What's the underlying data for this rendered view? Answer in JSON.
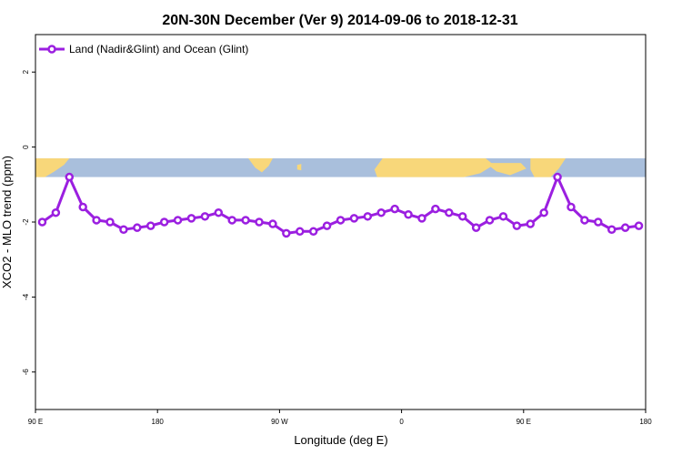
{
  "chart_data": {
    "type": "line",
    "title": "20N-30N December (Ver 9)   2014-09-06 to 2018-12-31",
    "xlabel": "Longitude (deg E)",
    "ylabel": "XCO2 - MLO trend (ppm)",
    "xlim": [
      90,
      540
    ],
    "ylim": [
      -7,
      3
    ],
    "x_ticks": [
      {
        "value": 90,
        "label": "90 E"
      },
      {
        "value": 180,
        "label": "180"
      },
      {
        "value": 270,
        "label": "90 W"
      },
      {
        "value": 360,
        "label": "0"
      },
      {
        "value": 450,
        "label": "90 E"
      },
      {
        "value": 540,
        "label": "180"
      }
    ],
    "y_ticks": [
      {
        "value": 2,
        "label": "2"
      },
      {
        "value": 0,
        "label": "0"
      },
      {
        "value": -2,
        "label": "-2"
      },
      {
        "value": -4,
        "label": "-4"
      },
      {
        "value": -6,
        "label": "-6"
      }
    ],
    "legend_position": "top-left",
    "grid": false,
    "map_strip": {
      "y_range": [
        -0.8,
        -0.3
      ],
      "ocean_color": "#a9bfdc",
      "land_color": "#f8d77a"
    },
    "series": [
      {
        "name": "Land (Nadir&Glint) and Ocean (Glint)",
        "color": "#9b1fe0",
        "x": [
          95,
          105,
          115,
          125,
          135,
          145,
          155,
          165,
          175,
          185,
          195,
          205,
          215,
          225,
          235,
          245,
          255,
          265,
          275,
          285,
          295,
          305,
          315,
          325,
          335,
          345,
          355,
          365,
          375,
          385,
          395,
          405,
          415,
          425,
          435,
          445,
          455,
          465,
          475,
          485,
          495,
          505,
          515,
          525,
          535
        ],
        "values": [
          -2.0,
          -1.75,
          -0.8,
          -1.6,
          -1.95,
          -2.0,
          -2.2,
          -2.15,
          -2.1,
          -2.0,
          -1.95,
          -1.9,
          -1.85,
          -1.75,
          -1.95,
          -1.95,
          -2.0,
          -2.05,
          -2.3,
          -2.25,
          -2.25,
          -2.1,
          -1.95,
          -1.9,
          -1.85,
          -1.75,
          -1.65,
          -1.8,
          -1.9,
          -1.65,
          -1.75,
          -1.85,
          -2.15,
          -1.95,
          -1.85,
          -2.1,
          -2.05,
          -1.75,
          -0.8,
          -1.6,
          -1.95,
          -2.0,
          -2.2,
          -2.15,
          -2.1
        ]
      }
    ]
  }
}
